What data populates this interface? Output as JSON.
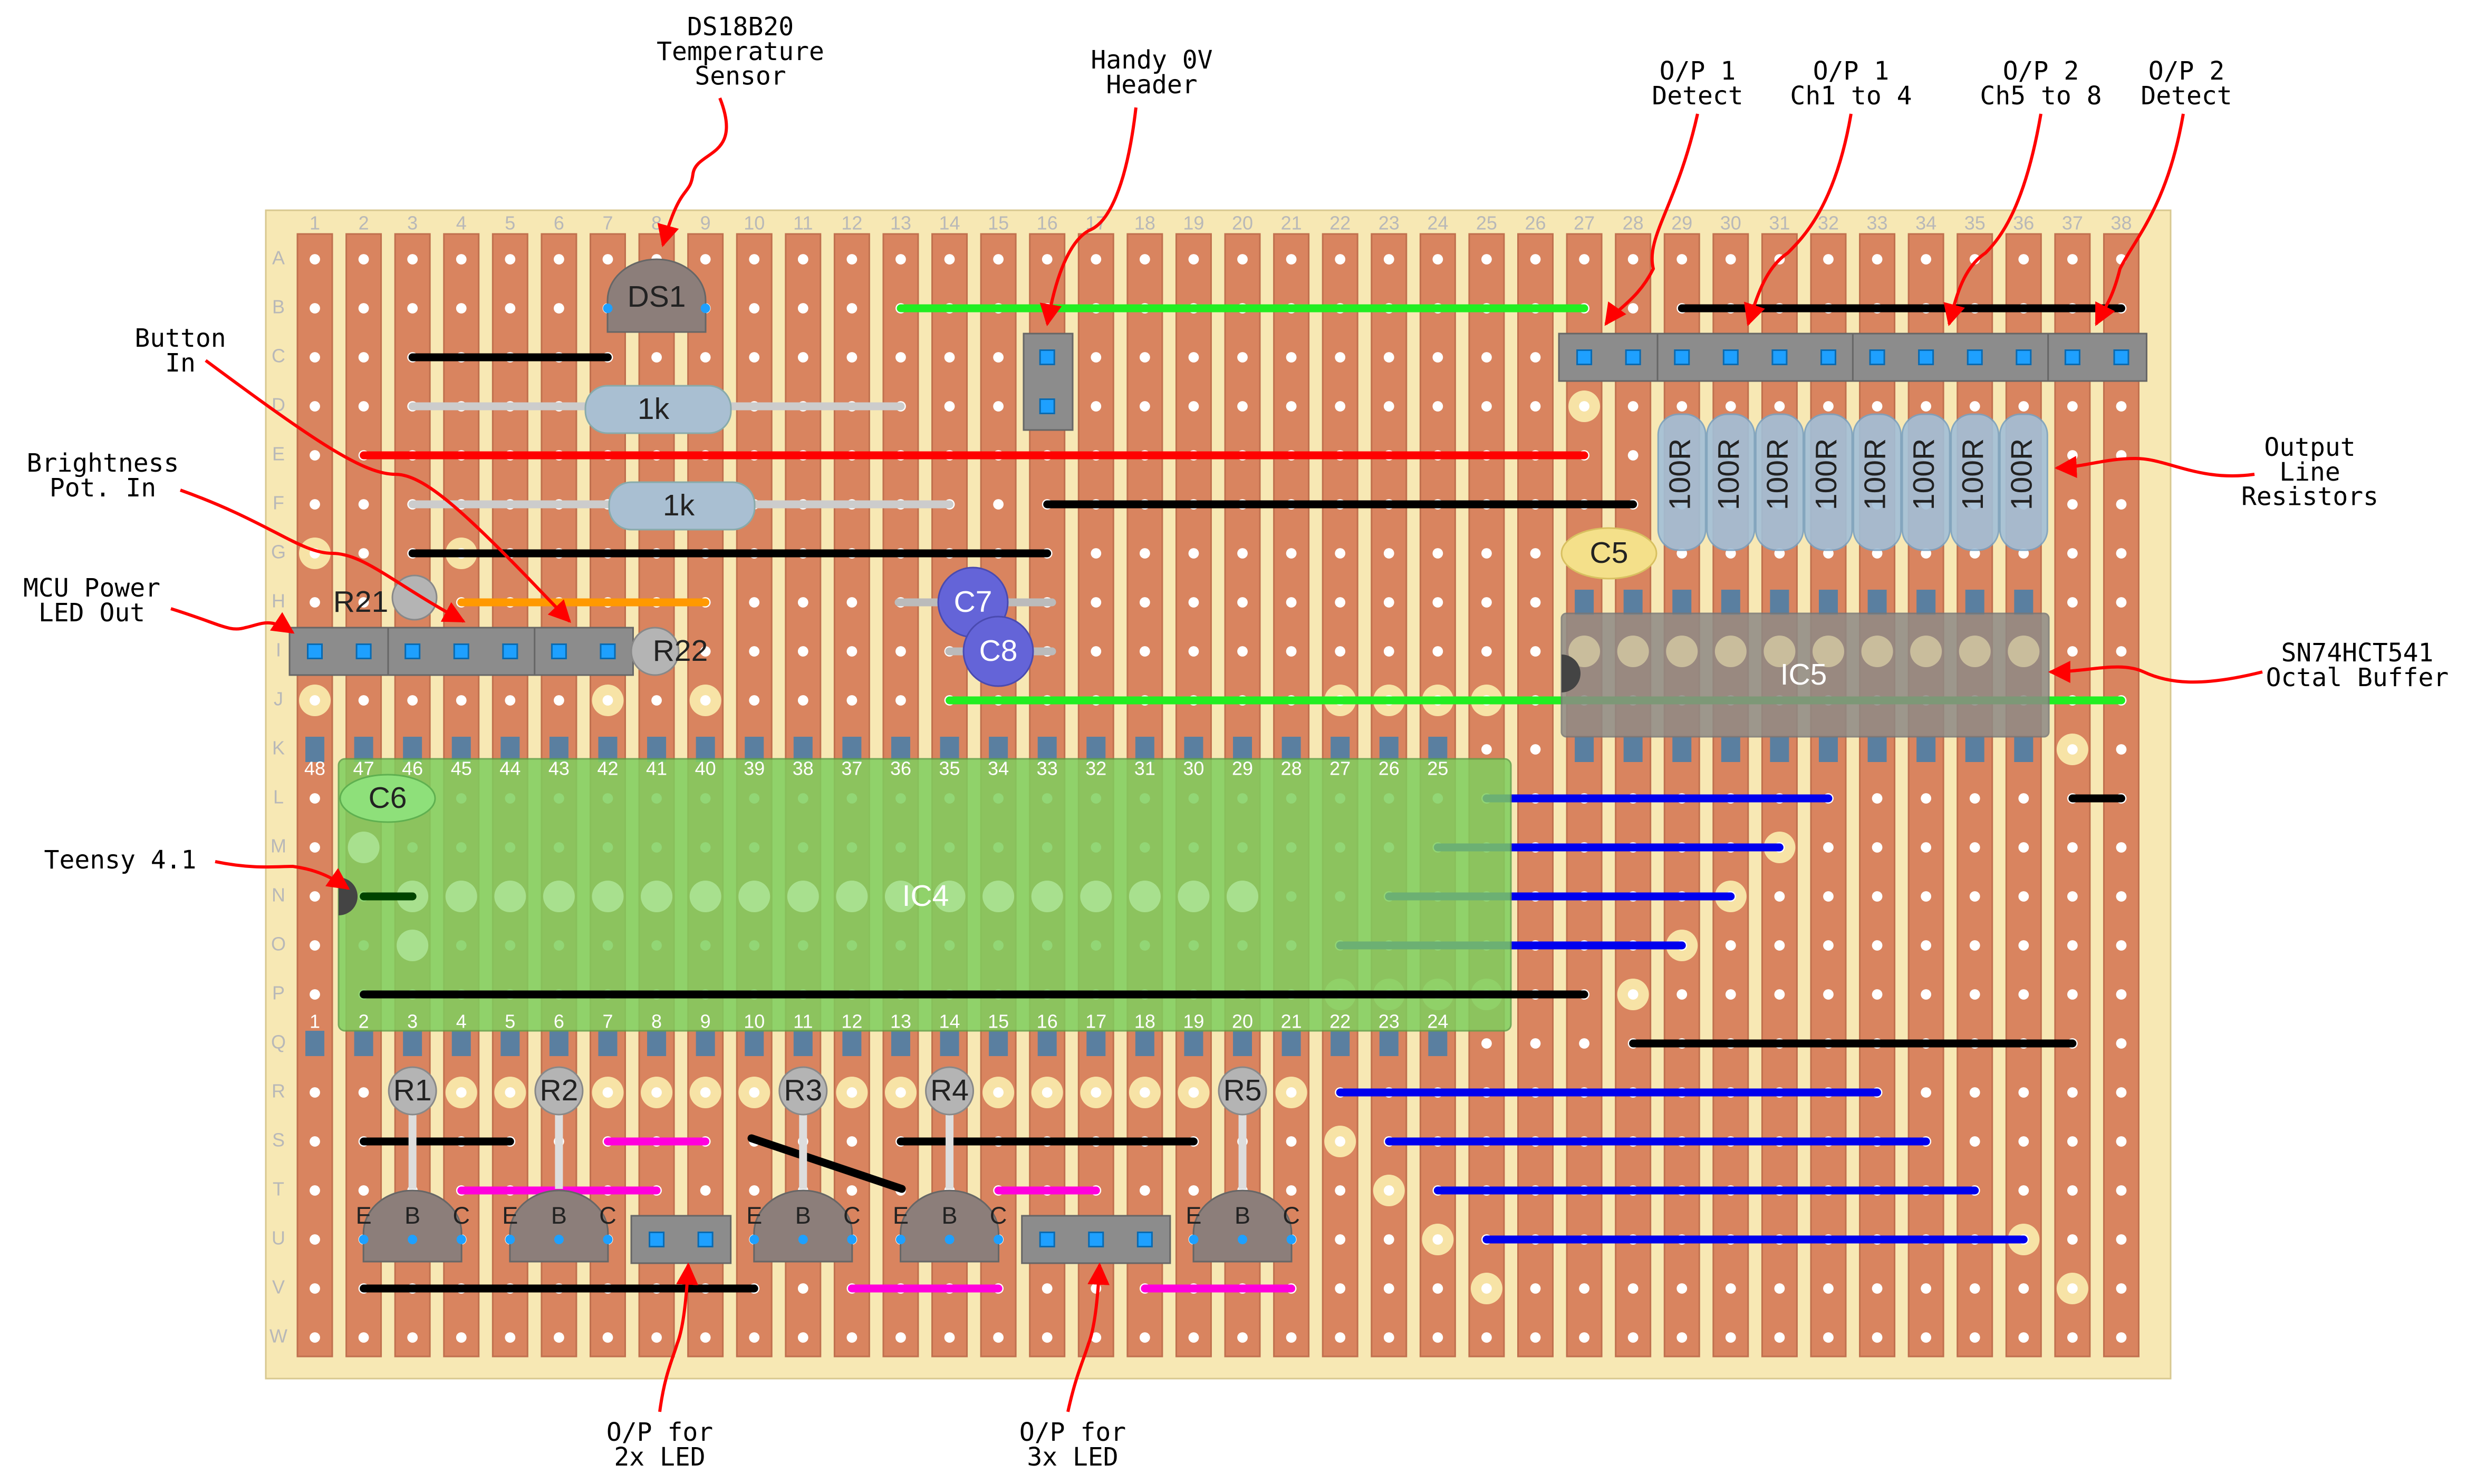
{
  "board": {
    "columns": [
      1,
      2,
      3,
      4,
      5,
      6,
      7,
      8,
      9,
      10,
      11,
      12,
      13,
      14,
      15,
      16,
      17,
      18,
      19,
      20,
      21,
      22,
      23,
      24,
      25,
      26,
      27,
      28,
      29,
      30,
      31,
      32,
      33,
      34,
      35,
      36,
      37,
      38
    ],
    "rows": [
      "A",
      "B",
      "C",
      "D",
      "E",
      "F",
      "G",
      "H",
      "I",
      "J",
      "K",
      "L",
      "M",
      "N",
      "O",
      "P",
      "Q",
      "R",
      "S",
      "T",
      "U",
      "V",
      "W"
    ]
  },
  "labels": {
    "ds1": "DS1",
    "res_d": "1k",
    "res_f": "1k",
    "r21": "R21",
    "r22": "R22",
    "c5": "C5",
    "c6": "C6",
    "c7": "C7",
    "c8": "C8",
    "ic4": "IC4",
    "ic5": "IC5",
    "r1": "R1",
    "r2": "R2",
    "r3": "R3",
    "r4": "R4",
    "r5": "R5"
  },
  "resistors_100r": [
    "100R",
    "100R",
    "100R",
    "100R",
    "100R",
    "100R",
    "100R",
    "100R"
  ],
  "ic4_pins": {
    "top": [
      48,
      47,
      46,
      45,
      44,
      43,
      42,
      41,
      40,
      39,
      38,
      37,
      36,
      35,
      34,
      33,
      32,
      31,
      30,
      29,
      28,
      27,
      26,
      25
    ],
    "bottom": [
      1,
      2,
      3,
      4,
      5,
      6,
      7,
      8,
      9,
      10,
      11,
      12,
      13,
      14,
      15,
      16,
      17,
      18,
      19,
      20,
      21,
      22,
      23,
      24
    ]
  },
  "transistor_pins": [
    "E",
    "B",
    "C"
  ],
  "annotations": [
    {
      "lines": [
        "DS18B20",
        "Temperature",
        "Sensor"
      ]
    },
    {
      "lines": [
        "Handy 0V",
        "Header"
      ]
    },
    {
      "lines": [
        "O/P 1",
        "Detect"
      ]
    },
    {
      "lines": [
        "O/P 1",
        "Ch1 to 4"
      ]
    },
    {
      "lines": [
        "O/P 2",
        "Ch5 to 8"
      ]
    },
    {
      "lines": [
        "O/P 2",
        "Detect"
      ]
    },
    {
      "lines": [
        "Button",
        "In"
      ]
    },
    {
      "lines": [
        "Brightness",
        "Pot. In"
      ]
    },
    {
      "lines": [
        "MCU Power",
        "LED Out"
      ]
    },
    {
      "lines": [
        "Teensy 4.1"
      ]
    },
    {
      "lines": [
        "Output",
        "Line",
        "Resistors"
      ]
    },
    {
      "lines": [
        "SN74HCT541",
        "Octal Buffer"
      ]
    },
    {
      "lines": [
        "O/P for",
        "2x LED"
      ]
    },
    {
      "lines": [
        "O/P for",
        "3x LED"
      ]
    }
  ]
}
